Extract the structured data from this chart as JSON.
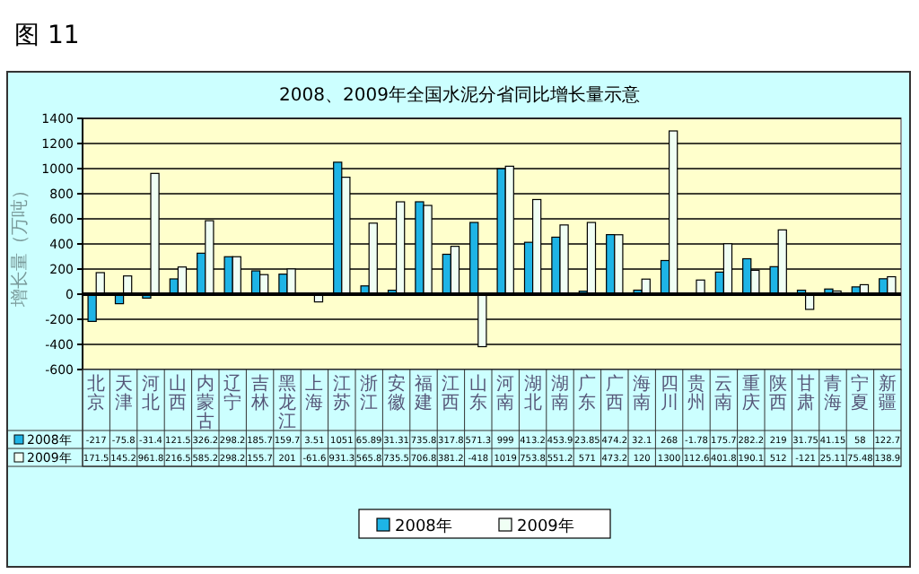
{
  "chart_data": {
    "type": "bar",
    "title": "2008、2009年全国水泥分省同比增长量示意",
    "ylabel": "增长量（万吨）",
    "annotations": [
      "图 11"
    ],
    "categories": [
      "北京",
      "天津",
      "河北",
      "山西",
      "内蒙古",
      "辽宁",
      "吉林",
      "黑龙江",
      "上海",
      "江苏",
      "浙江",
      "安徽",
      "福建",
      "江西",
      "山东",
      "河南",
      "湖北",
      "湖南",
      "广东",
      "广西",
      "海南",
      "四川",
      "贵州",
      "云南",
      "重庆",
      "陕西",
      "甘肃",
      "青海",
      "宁夏",
      "新疆"
    ],
    "series": [
      {
        "name": "2008年",
        "color": "#1eb4e6",
        "values": [
          -217,
          -75.8,
          -31.4,
          121.5,
          326.2,
          298.2,
          185.7,
          159.7,
          3.51,
          1051,
          65.89,
          31.31,
          735.8,
          317.8,
          571.3,
          999,
          413.2,
          453.9,
          23.85,
          474.2,
          32.1,
          268,
          -1.78,
          175.7,
          282.2,
          219,
          31.75,
          41.15,
          58,
          122.7
        ]
      },
      {
        "name": "2009年",
        "color": "#f0fff4",
        "values": [
          171.5,
          145.2,
          961.8,
          216.5,
          585.2,
          298.2,
          155.7,
          201,
          -61.6,
          931.3,
          565.8,
          735.5,
          706.8,
          381.2,
          -418,
          1019,
          753.8,
          551.2,
          571,
          473.2,
          120,
          1300,
          112.6,
          401.8,
          190.1,
          512,
          -121,
          25.11,
          75.48,
          138.9
        ]
      }
    ],
    "ylim": [
      -600,
      1400
    ],
    "yticks": [
      -600,
      -400,
      -200,
      0,
      200,
      400,
      600,
      800,
      1000,
      1200,
      1400
    ],
    "grid": "y",
    "legend": "bottom",
    "data_labels": true
  }
}
